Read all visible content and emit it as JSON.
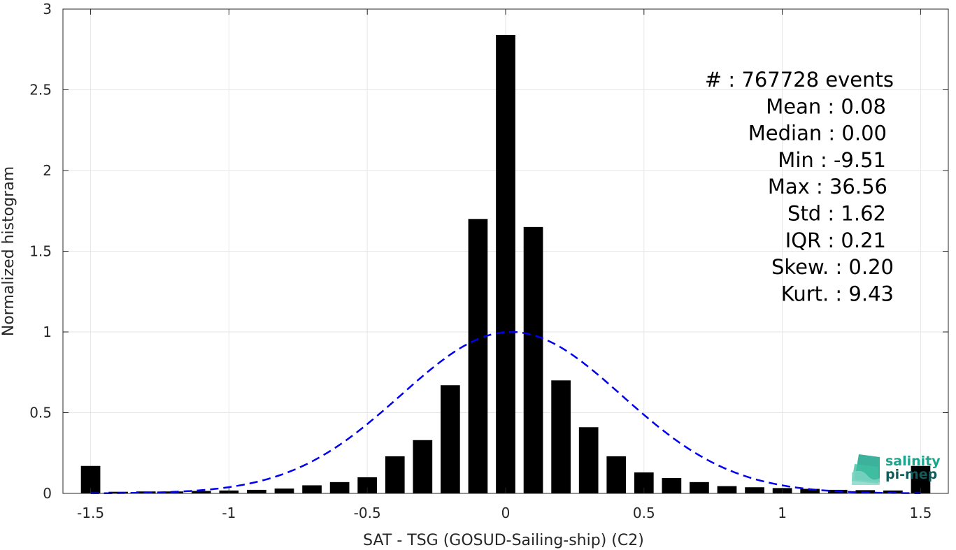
{
  "chart_data": {
    "type": "bar",
    "xlabel": "SAT - TSG (GOSUD-Sailing-ship) (C2)",
    "ylabel": "Normalized histogram",
    "xlim": [
      -1.6,
      1.6
    ],
    "ylim": [
      0,
      3
    ],
    "grid": true,
    "x_ticks": [
      "-1.5",
      "-1",
      "-0.5",
      "0",
      "0.5",
      "1",
      "1.5"
    ],
    "x_tick_values": [
      -1.5,
      -1,
      -0.5,
      0,
      0.5,
      1,
      1.5
    ],
    "y_ticks": [
      "0",
      "0.5",
      "1",
      "1.5",
      "2",
      "2.5",
      "3"
    ],
    "y_tick_values": [
      0,
      0.5,
      1,
      1.5,
      2,
      2.5,
      3
    ],
    "bar_width": 0.07,
    "bar_color": "#000000",
    "bars": {
      "x": [
        -1.5,
        -1.4,
        -1.3,
        -1.2,
        -1.1,
        -1.0,
        -0.9,
        -0.8,
        -0.7,
        -0.6,
        -0.5,
        -0.4,
        -0.3,
        -0.2,
        -0.1,
        0.0,
        0.1,
        0.2,
        0.3,
        0.4,
        0.5,
        0.6,
        0.7,
        0.8,
        0.9,
        1.0,
        1.1,
        1.2,
        1.3,
        1.4,
        1.5
      ],
      "values": [
        0.17,
        0.01,
        0.012,
        0.012,
        0.015,
        0.018,
        0.022,
        0.03,
        0.05,
        0.07,
        0.1,
        0.23,
        0.33,
        0.67,
        1.7,
        2.84,
        1.65,
        0.7,
        0.41,
        0.23,
        0.13,
        0.095,
        0.07,
        0.045,
        0.038,
        0.033,
        0.028,
        0.022,
        0.02,
        0.018,
        0.17
      ]
    },
    "fit_curve": {
      "style": "dashed",
      "color": "#0000ee",
      "mean": 0.02,
      "sigma": 0.4,
      "peak": 1.0
    },
    "stats": [
      {
        "text": "#  : 767728 events",
        "anchor": "end"
      },
      {
        "text": "Mean : 0.08",
        "anchor": "end"
      },
      {
        "text": "Median : 0.00",
        "anchor": "end"
      },
      {
        "text": "Min : -9.51",
        "anchor": "end"
      },
      {
        "text": "Max : 36.56",
        "anchor": "end"
      },
      {
        "text": "Std : 1.62",
        "anchor": "end"
      },
      {
        "text": "IQR : 0.21",
        "anchor": "end"
      },
      {
        "text": "Skew. : 0.20",
        "anchor": "end"
      },
      {
        "text": "Kurt. : 9.43",
        "anchor": "end"
      }
    ]
  },
  "logo": {
    "line1": "salinity",
    "line2": "pi-mep",
    "color1": "#1aa58c",
    "color2": "#145a5a"
  }
}
